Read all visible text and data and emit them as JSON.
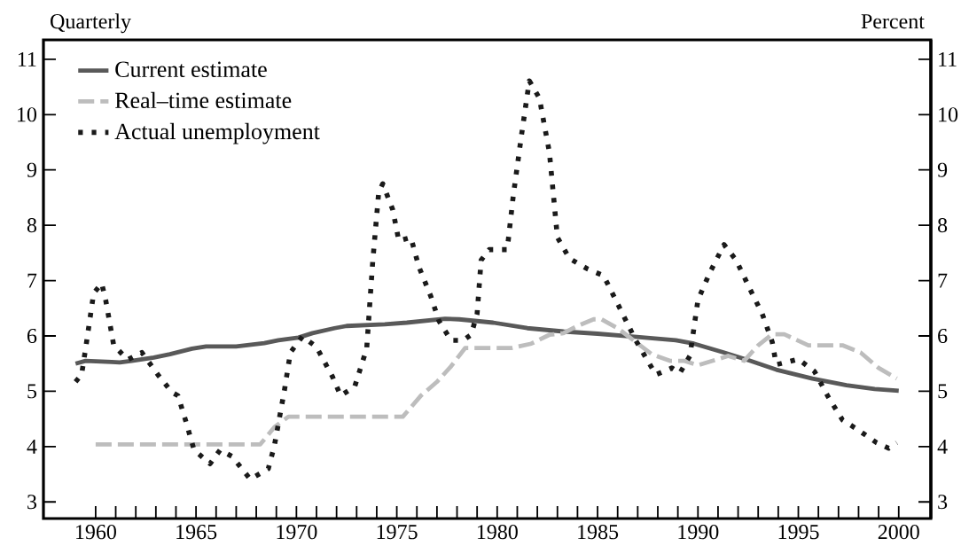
{
  "chart_data": {
    "type": "line",
    "annotations": [
      "Quarterly"
    ],
    "y2label": "Percent",
    "xlim": [
      1957.4,
      2001.6
    ],
    "xticks": [
      1960,
      1965,
      1970,
      1975,
      1980,
      1985,
      1990,
      1995,
      2000
    ],
    "ylim": [
      2.7,
      11.35
    ],
    "yticks": [
      3,
      4,
      5,
      6,
      7,
      8,
      9,
      10,
      11
    ],
    "y2lim": [
      2.7,
      11.35
    ],
    "y2ticks": [
      3,
      4,
      5,
      6,
      7,
      8,
      9,
      10,
      11
    ],
    "legend": "top left",
    "series": [
      {
        "name": "Current estimate",
        "color": "#595959",
        "line_style": "solid",
        "x": [
          1959.0,
          1959.5,
          1960.8,
          1961.2,
          1961.8,
          1962.9,
          1963.7,
          1964.8,
          1965.5,
          1967.0,
          1968.4,
          1969.1,
          1970.1,
          1970.8,
          1971.9,
          1972.5,
          1974.4,
          1975.5,
          1977.4,
          1978.1,
          1979.8,
          1981.5,
          1983.3,
          1985.0,
          1986.7,
          1988.9,
          1989.8,
          1991.3,
          1992.6,
          1993.9,
          1995.7,
          1997.4,
          1998.8,
          2000.0
        ],
        "values": [
          5.5,
          5.55,
          5.53,
          5.52,
          5.55,
          5.61,
          5.67,
          5.77,
          5.81,
          5.81,
          5.87,
          5.92,
          5.97,
          6.05,
          6.14,
          6.18,
          6.21,
          6.24,
          6.31,
          6.3,
          6.24,
          6.14,
          6.08,
          6.04,
          5.99,
          5.92,
          5.86,
          5.7,
          5.55,
          5.39,
          5.23,
          5.11,
          5.04,
          5.01
        ]
      },
      {
        "name": "Real–time estimate",
        "color": "#bdbdbd",
        "line_style": "dashed",
        "x": [
          1960.0,
          1968.2,
          1968.9,
          1969.6,
          1975.3,
          1976.2,
          1977.0,
          1977.7,
          1978.4,
          1980.7,
          1981.7,
          1982.6,
          1983.3,
          1984.0,
          1984.8,
          1985.2,
          1986.0,
          1986.9,
          1987.7,
          1988.6,
          1989.3,
          1990.0,
          1991.0,
          1991.5,
          1992.3,
          1993.0,
          1993.7,
          1994.3,
          1995.5,
          1997.2,
          1998.1,
          1999.0,
          1999.9
        ],
        "values": [
          4.04,
          4.04,
          4.35,
          4.54,
          4.54,
          4.92,
          5.17,
          5.45,
          5.78,
          5.78,
          5.86,
          6.02,
          6.05,
          6.18,
          6.3,
          6.3,
          6.14,
          5.89,
          5.67,
          5.55,
          5.55,
          5.47,
          5.58,
          5.64,
          5.55,
          5.83,
          6.03,
          6.03,
          5.83,
          5.83,
          5.7,
          5.42,
          5.23
        ]
      },
      {
        "name": "Actual unemployment",
        "color": "#1a1a1a",
        "line_style": "dotted",
        "x": [
          1959.0,
          1959.3,
          1959.5,
          1959.9,
          1960.3,
          1960.5,
          1960.9,
          1961.6,
          1962.3,
          1963.1,
          1963.8,
          1964.1,
          1964.5,
          1964.9,
          1965.7,
          1966.2,
          1966.8,
          1967.7,
          1968.6,
          1968.9,
          1969.4,
          1969.7,
          1970.3,
          1971.0,
          1971.8,
          1972.2,
          1972.9,
          1973.5,
          1973.8,
          1974.1,
          1974.3,
          1974.8,
          1975.1,
          1975.7,
          1976.1,
          1976.7,
          1977.1,
          1977.7,
          1978.3,
          1978.7,
          1979.0,
          1979.2,
          1979.6,
          1980.5,
          1980.8,
          1981.2,
          1981.6,
          1982.1,
          1982.6,
          1983.0,
          1983.6,
          1984.5,
          1985.3,
          1986.0,
          1986.9,
          1987.9,
          1988.7,
          1989.1,
          1989.6,
          1990.0,
          1990.6,
          1991.3,
          1991.9,
          1992.6,
          1993.2,
          1993.7,
          1993.9,
          1995.0,
          1995.8,
          1996.5,
          1997.2,
          1997.9,
          1998.9,
          1999.5,
          1999.9
        ],
        "values": [
          5.17,
          5.3,
          5.77,
          6.77,
          6.95,
          6.65,
          5.83,
          5.57,
          5.7,
          5.3,
          4.98,
          4.92,
          4.45,
          3.94,
          3.69,
          3.94,
          3.82,
          3.41,
          3.6,
          4.01,
          5.01,
          5.7,
          5.99,
          5.8,
          5.26,
          4.92,
          5.08,
          5.77,
          7.34,
          8.6,
          8.75,
          8.28,
          7.72,
          7.78,
          7.25,
          6.71,
          6.27,
          5.92,
          5.92,
          6.02,
          6.4,
          7.37,
          7.56,
          7.56,
          8.53,
          9.6,
          10.61,
          10.3,
          9.32,
          7.78,
          7.4,
          7.21,
          7.09,
          6.58,
          5.92,
          5.3,
          5.42,
          5.33,
          5.64,
          6.65,
          7.15,
          7.65,
          7.37,
          6.84,
          6.4,
          5.89,
          5.48,
          5.58,
          5.36,
          4.89,
          4.48,
          4.32,
          4.07,
          3.97,
          4.07
        ]
      }
    ]
  }
}
